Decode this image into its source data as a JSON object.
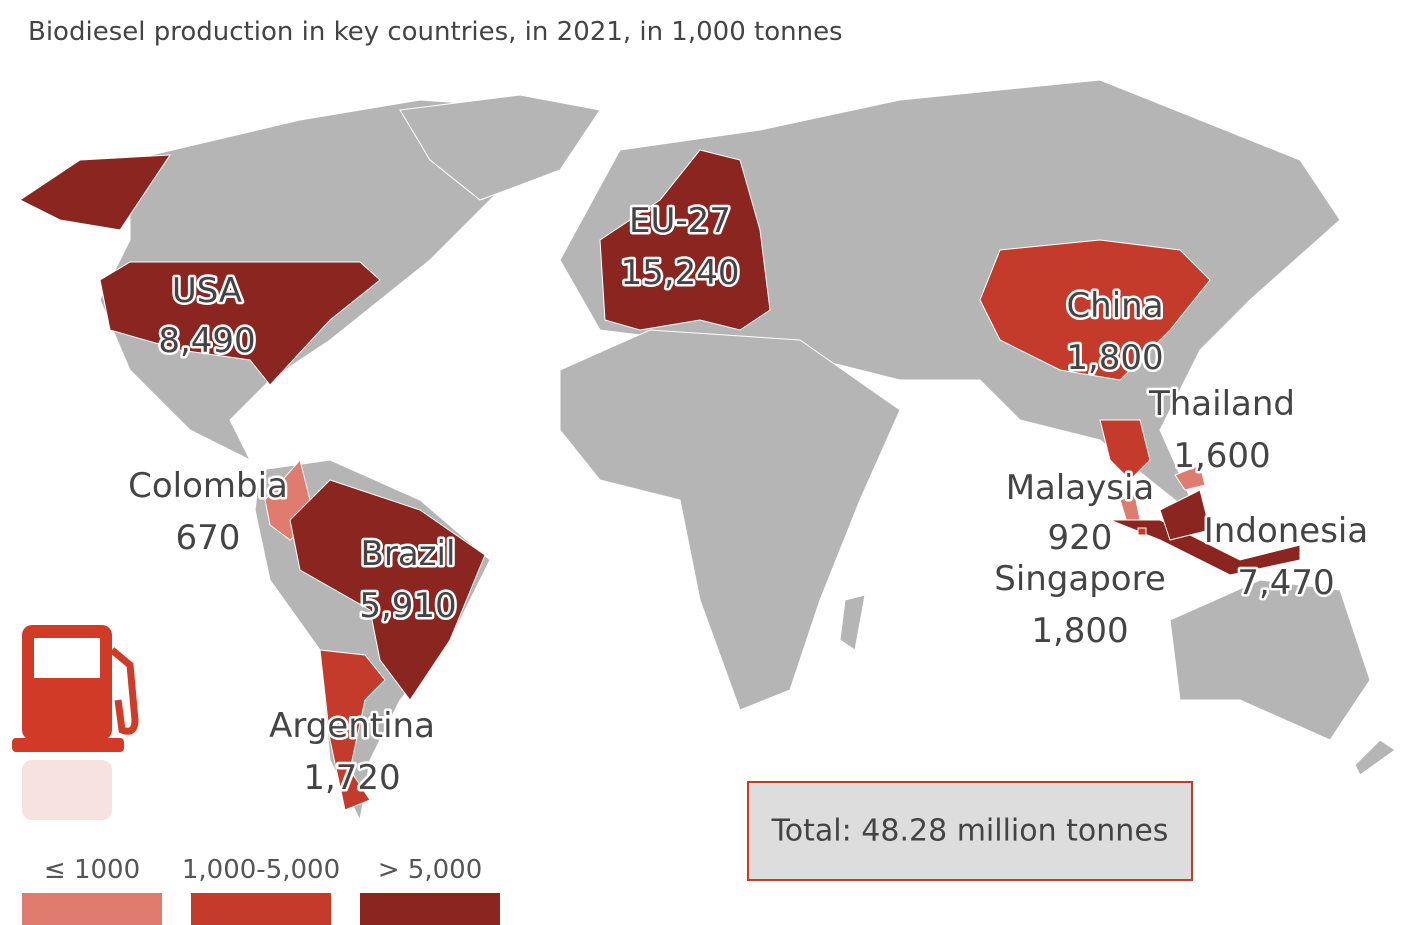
{
  "title": "Biodiesel production in key countries, in 2021, in 1,000 tonnes",
  "regions": [
    {
      "name": "USA",
      "value": "8,490",
      "color": "#8b2520"
    },
    {
      "name": "EU-27",
      "value": "15,240",
      "color": "#8b2520"
    },
    {
      "name": "China",
      "value": "1,800",
      "color": "#c43b2c"
    },
    {
      "name": "Thailand",
      "value": "1,600",
      "color": "#c43b2c"
    },
    {
      "name": "Malaysia",
      "value": "920",
      "color": "#e07b70"
    },
    {
      "name": "Indonesia",
      "value": "7,470",
      "color": "#8b2520"
    },
    {
      "name": "Singapore",
      "value": "1,800",
      "color": "#c43b2c"
    },
    {
      "name": "Colombia",
      "value": "670",
      "color": "#e07b70"
    },
    {
      "name": "Brazil",
      "value": "5,910",
      "color": "#8b2520"
    },
    {
      "name": "Argentina",
      "value": "1,720",
      "color": "#c43b2c"
    }
  ],
  "legend": [
    {
      "label": "≤ 1000",
      "color": "#e07b70"
    },
    {
      "label": "1,000-5,000",
      "color": "#c43b2c"
    },
    {
      "label": "> 5,000",
      "color": "#8b2520"
    }
  ],
  "total": "Total: 48.28 million tonnes"
}
